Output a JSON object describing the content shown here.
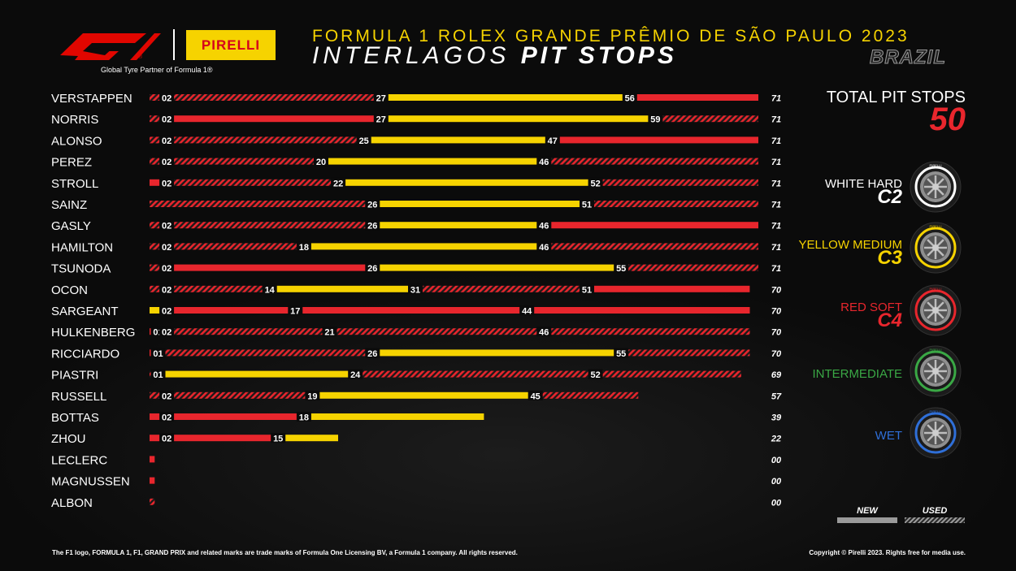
{
  "header": {
    "title_line1": "FORMULA 1 ROLEX GRANDE PRÊMIO DE SÃO PAULO 2023",
    "title_line2_light": "INTERLAGOS",
    "title_line2_bold": "PIT STOPS",
    "country": "BRAZIL",
    "partner_text": "Global Tyre Partner of Formula 1®",
    "pirelli_logo_text": "PIRELLI"
  },
  "totals": {
    "label": "TOTAL PIT STOPS",
    "value": "50"
  },
  "compounds": [
    {
      "label": "WHITE HARD",
      "code": "C2",
      "color": "#ffffff",
      "label_color": "#ffffff",
      "code_color": "#ffffff",
      "tyre_label": "PIRELLI"
    },
    {
      "label": "YELLOW MEDIUM",
      "code": "C3",
      "color": "#f6d300",
      "label_color": "#f6d300",
      "code_color": "#f6d300",
      "tyre_label": "PIRELLI"
    },
    {
      "label": "RED SOFT",
      "code": "C4",
      "color": "#e8262d",
      "label_color": "#e8262d",
      "code_color": "#e8262d",
      "tyre_label": "PIRELLI"
    },
    {
      "label": "INTERMEDIATE",
      "code": "",
      "color": "#3aa845",
      "label_color": "#3aa845",
      "code_color": "#3aa845",
      "tyre_label": "PIRELLI"
    },
    {
      "label": "WET",
      "code": "",
      "color": "#2f6fd8",
      "label_color": "#2f6fd8",
      "code_color": "#2f6fd8",
      "tyre_label": "PIRELLI"
    }
  ],
  "legend": {
    "new": "NEW",
    "used": "USED"
  },
  "footer": {
    "left": "The F1 logo, FORMULA 1, F1, GRAND PRIX and related marks are trade marks of Formula One Licensing BV, a Formula 1 company. All rights reserved.",
    "right": "Copyright © Pirelli 2023. Rights free for media use."
  },
  "colors": {
    "soft": "#e8262d",
    "medium": "#f6d300",
    "hard": "#ffffff",
    "background": "#0b0b0b"
  },
  "chart_data": {
    "type": "bar",
    "orientation": "horizontal-stacked-stints",
    "x_unit": "lap",
    "xlim": [
      0,
      71
    ],
    "drivers": [
      {
        "name": "VERSTAPPEN",
        "laps_label": "71",
        "stints": [
          {
            "start": 0,
            "end": 2,
            "compound": "soft",
            "used": true,
            "end_label": "02"
          },
          {
            "start": 2,
            "end": 27,
            "compound": "soft",
            "used": true,
            "end_label": "27"
          },
          {
            "start": 27,
            "end": 56,
            "compound": "medium",
            "used": false,
            "end_label": "56"
          },
          {
            "start": 56,
            "end": 71,
            "compound": "soft",
            "used": false,
            "end_label": ""
          }
        ]
      },
      {
        "name": "NORRIS",
        "laps_label": "71",
        "stints": [
          {
            "start": 0,
            "end": 2,
            "compound": "soft",
            "used": true,
            "end_label": "02"
          },
          {
            "start": 2,
            "end": 27,
            "compound": "soft",
            "used": false,
            "end_label": "27"
          },
          {
            "start": 27,
            "end": 59,
            "compound": "medium",
            "used": false,
            "end_label": "59"
          },
          {
            "start": 59,
            "end": 71,
            "compound": "soft",
            "used": true,
            "end_label": ""
          }
        ]
      },
      {
        "name": "ALONSO",
        "laps_label": "71",
        "stints": [
          {
            "start": 0,
            "end": 2,
            "compound": "soft",
            "used": true,
            "end_label": "02"
          },
          {
            "start": 2,
            "end": 25,
            "compound": "soft",
            "used": true,
            "end_label": "25"
          },
          {
            "start": 25,
            "end": 47,
            "compound": "medium",
            "used": false,
            "end_label": "47"
          },
          {
            "start": 47,
            "end": 71,
            "compound": "soft",
            "used": false,
            "end_label": ""
          }
        ]
      },
      {
        "name": "PEREZ",
        "laps_label": "71",
        "stints": [
          {
            "start": 0,
            "end": 2,
            "compound": "soft",
            "used": true,
            "end_label": "02"
          },
          {
            "start": 2,
            "end": 20,
            "compound": "soft",
            "used": true,
            "end_label": "20"
          },
          {
            "start": 20,
            "end": 46,
            "compound": "medium",
            "used": false,
            "end_label": "46"
          },
          {
            "start": 46,
            "end": 71,
            "compound": "soft",
            "used": true,
            "end_label": ""
          }
        ]
      },
      {
        "name": "STROLL",
        "laps_label": "71",
        "stints": [
          {
            "start": 0,
            "end": 2,
            "compound": "soft",
            "used": false,
            "end_label": "02"
          },
          {
            "start": 2,
            "end": 22,
            "compound": "soft",
            "used": true,
            "end_label": "22"
          },
          {
            "start": 22,
            "end": 52,
            "compound": "medium",
            "used": false,
            "end_label": "52"
          },
          {
            "start": 52,
            "end": 71,
            "compound": "soft",
            "used": true,
            "end_label": ""
          }
        ]
      },
      {
        "name": "SAINZ",
        "laps_label": "71",
        "stints": [
          {
            "start": 0,
            "end": 26,
            "compound": "soft",
            "used": true,
            "end_label": "26"
          },
          {
            "start": 26,
            "end": 51,
            "compound": "medium",
            "used": false,
            "end_label": "51"
          },
          {
            "start": 51,
            "end": 71,
            "compound": "soft",
            "used": true,
            "end_label": ""
          }
        ]
      },
      {
        "name": "GASLY",
        "laps_label": "71",
        "stints": [
          {
            "start": 0,
            "end": 2,
            "compound": "soft",
            "used": true,
            "end_label": "02"
          },
          {
            "start": 2,
            "end": 26,
            "compound": "soft",
            "used": true,
            "end_label": "26"
          },
          {
            "start": 26,
            "end": 46,
            "compound": "medium",
            "used": false,
            "end_label": "46"
          },
          {
            "start": 46,
            "end": 71,
            "compound": "soft",
            "used": false,
            "end_label": ""
          }
        ]
      },
      {
        "name": "HAMILTON",
        "laps_label": "71",
        "stints": [
          {
            "start": 0,
            "end": 2,
            "compound": "soft",
            "used": true,
            "end_label": "02"
          },
          {
            "start": 2,
            "end": 18,
            "compound": "soft",
            "used": true,
            "end_label": "18"
          },
          {
            "start": 18,
            "end": 46,
            "compound": "medium",
            "used": false,
            "end_label": "46"
          },
          {
            "start": 46,
            "end": 71,
            "compound": "soft",
            "used": true,
            "end_label": ""
          }
        ]
      },
      {
        "name": "TSUNODA",
        "laps_label": "71",
        "stints": [
          {
            "start": 0,
            "end": 2,
            "compound": "soft",
            "used": true,
            "end_label": "02"
          },
          {
            "start": 2,
            "end": 26,
            "compound": "soft",
            "used": false,
            "end_label": "26"
          },
          {
            "start": 26,
            "end": 55,
            "compound": "medium",
            "used": false,
            "end_label": "55"
          },
          {
            "start": 55,
            "end": 71,
            "compound": "soft",
            "used": true,
            "end_label": ""
          }
        ]
      },
      {
        "name": "OCON",
        "laps_label": "70",
        "stints": [
          {
            "start": 0,
            "end": 2,
            "compound": "soft",
            "used": true,
            "end_label": "02"
          },
          {
            "start": 2,
            "end": 14,
            "compound": "soft",
            "used": true,
            "end_label": "14"
          },
          {
            "start": 14,
            "end": 31,
            "compound": "medium",
            "used": false,
            "end_label": "31"
          },
          {
            "start": 31,
            "end": 51,
            "compound": "soft",
            "used": true,
            "end_label": "51"
          },
          {
            "start": 51,
            "end": 70,
            "compound": "soft",
            "used": false,
            "end_label": ""
          }
        ]
      },
      {
        "name": "SARGEANT",
        "laps_label": "70",
        "stints": [
          {
            "start": 0,
            "end": 2,
            "compound": "medium",
            "used": false,
            "end_label": "02"
          },
          {
            "start": 2,
            "end": 17,
            "compound": "soft",
            "used": false,
            "end_label": "17"
          },
          {
            "start": 17,
            "end": 44,
            "compound": "soft",
            "used": false,
            "end_label": "44"
          },
          {
            "start": 44,
            "end": 70,
            "compound": "soft",
            "used": false,
            "end_label": ""
          }
        ]
      },
      {
        "name": "HULKENBERG",
        "laps_label": "70",
        "stints": [
          {
            "start": 0,
            "end": 1,
            "compound": "soft",
            "used": false,
            "end_label": "01"
          },
          {
            "start": 1,
            "end": 2,
            "compound": "medium",
            "used": false,
            "end_label": "02"
          },
          {
            "start": 2,
            "end": 21,
            "compound": "soft",
            "used": true,
            "end_label": "21"
          },
          {
            "start": 21,
            "end": 46,
            "compound": "soft",
            "used": true,
            "end_label": "46"
          },
          {
            "start": 46,
            "end": 70,
            "compound": "soft",
            "used": true,
            "end_label": ""
          }
        ]
      },
      {
        "name": "RICCIARDO",
        "laps_label": "70",
        "stints": [
          {
            "start": 0,
            "end": 1,
            "compound": "soft",
            "used": false,
            "end_label": "01"
          },
          {
            "start": 1,
            "end": 26,
            "compound": "soft",
            "used": true,
            "end_label": "26"
          },
          {
            "start": 26,
            "end": 55,
            "compound": "medium",
            "used": false,
            "end_label": "55"
          },
          {
            "start": 55,
            "end": 70,
            "compound": "soft",
            "used": true,
            "end_label": ""
          }
        ]
      },
      {
        "name": "PIASTRI",
        "laps_label": "69",
        "stints": [
          {
            "start": 0,
            "end": 1,
            "compound": "soft",
            "used": true,
            "end_label": "01"
          },
          {
            "start": 1,
            "end": 24,
            "compound": "medium",
            "used": false,
            "end_label": "24"
          },
          {
            "start": 24,
            "end": 52,
            "compound": "soft",
            "used": true,
            "end_label": "52"
          },
          {
            "start": 52,
            "end": 69,
            "compound": "soft",
            "used": true,
            "end_label": ""
          }
        ]
      },
      {
        "name": "RUSSELL",
        "laps_label": "57",
        "stints": [
          {
            "start": 0,
            "end": 2,
            "compound": "soft",
            "used": true,
            "end_label": "02"
          },
          {
            "start": 2,
            "end": 19,
            "compound": "soft",
            "used": true,
            "end_label": "19"
          },
          {
            "start": 19,
            "end": 45,
            "compound": "medium",
            "used": false,
            "end_label": "45"
          },
          {
            "start": 45,
            "end": 57,
            "compound": "soft",
            "used": true,
            "end_label": ""
          }
        ]
      },
      {
        "name": "BOTTAS",
        "laps_label": "39",
        "stints": [
          {
            "start": 0,
            "end": 2,
            "compound": "soft",
            "used": false,
            "end_label": "02"
          },
          {
            "start": 2,
            "end": 18,
            "compound": "soft",
            "used": false,
            "end_label": "18"
          },
          {
            "start": 18,
            "end": 39,
            "compound": "medium",
            "used": false,
            "end_label": ""
          }
        ]
      },
      {
        "name": "ZHOU",
        "laps_label": "22",
        "stints": [
          {
            "start": 0,
            "end": 2,
            "compound": "soft",
            "used": false,
            "end_label": "02"
          },
          {
            "start": 2,
            "end": 15,
            "compound": "soft",
            "used": false,
            "end_label": "15"
          },
          {
            "start": 15,
            "end": 22,
            "compound": "medium",
            "used": false,
            "end_label": ""
          }
        ]
      },
      {
        "name": "LECLERC",
        "laps_label": "00",
        "stints": [
          {
            "start": 0,
            "end": 0.6,
            "compound": "soft",
            "used": false,
            "end_label": ""
          }
        ]
      },
      {
        "name": "MAGNUSSEN",
        "laps_label": "00",
        "stints": [
          {
            "start": 0,
            "end": 0.6,
            "compound": "soft",
            "used": false,
            "end_label": ""
          }
        ]
      },
      {
        "name": "ALBON",
        "laps_label": "00",
        "stints": [
          {
            "start": 0,
            "end": 0.6,
            "compound": "soft",
            "used": true,
            "end_label": ""
          }
        ]
      }
    ]
  }
}
